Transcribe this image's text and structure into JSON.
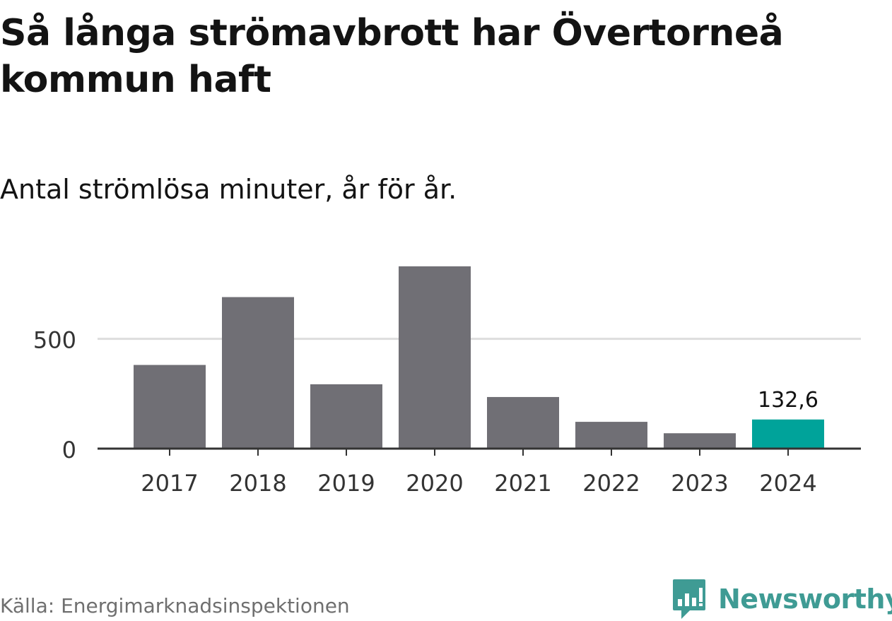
{
  "header": {
    "title": "Så långa strömavbrott har Övertorneå kommun haft",
    "subtitle": "Antal strömlösa minuter, år för år."
  },
  "footer": {
    "source": "Källa: Energimarknadsinspektionen",
    "brand": "Newsworthy",
    "brand_icon": "bar-chart-speech-bubble-icon",
    "brand_color": "#3f9b94"
  },
  "chart_data": {
    "type": "bar",
    "categories": [
      "2017",
      "2018",
      "2019",
      "2020",
      "2021",
      "2022",
      "2023",
      "2024"
    ],
    "values": [
      381,
      690,
      293,
      830,
      235,
      122,
      70,
      132.6
    ],
    "ylim": [
      0,
      830
    ],
    "yticks": [
      0,
      500
    ],
    "ytick_labels": [
      "0",
      "500"
    ],
    "grid": "horizontal",
    "annotations": [
      {
        "category": "2024",
        "label": "132,6"
      }
    ],
    "colors": {
      "default_bar": "#706f75",
      "highlight_bar": "#00a39a",
      "gridline": "#dddddd",
      "axis": "#333333"
    },
    "highlight": "2024"
  }
}
